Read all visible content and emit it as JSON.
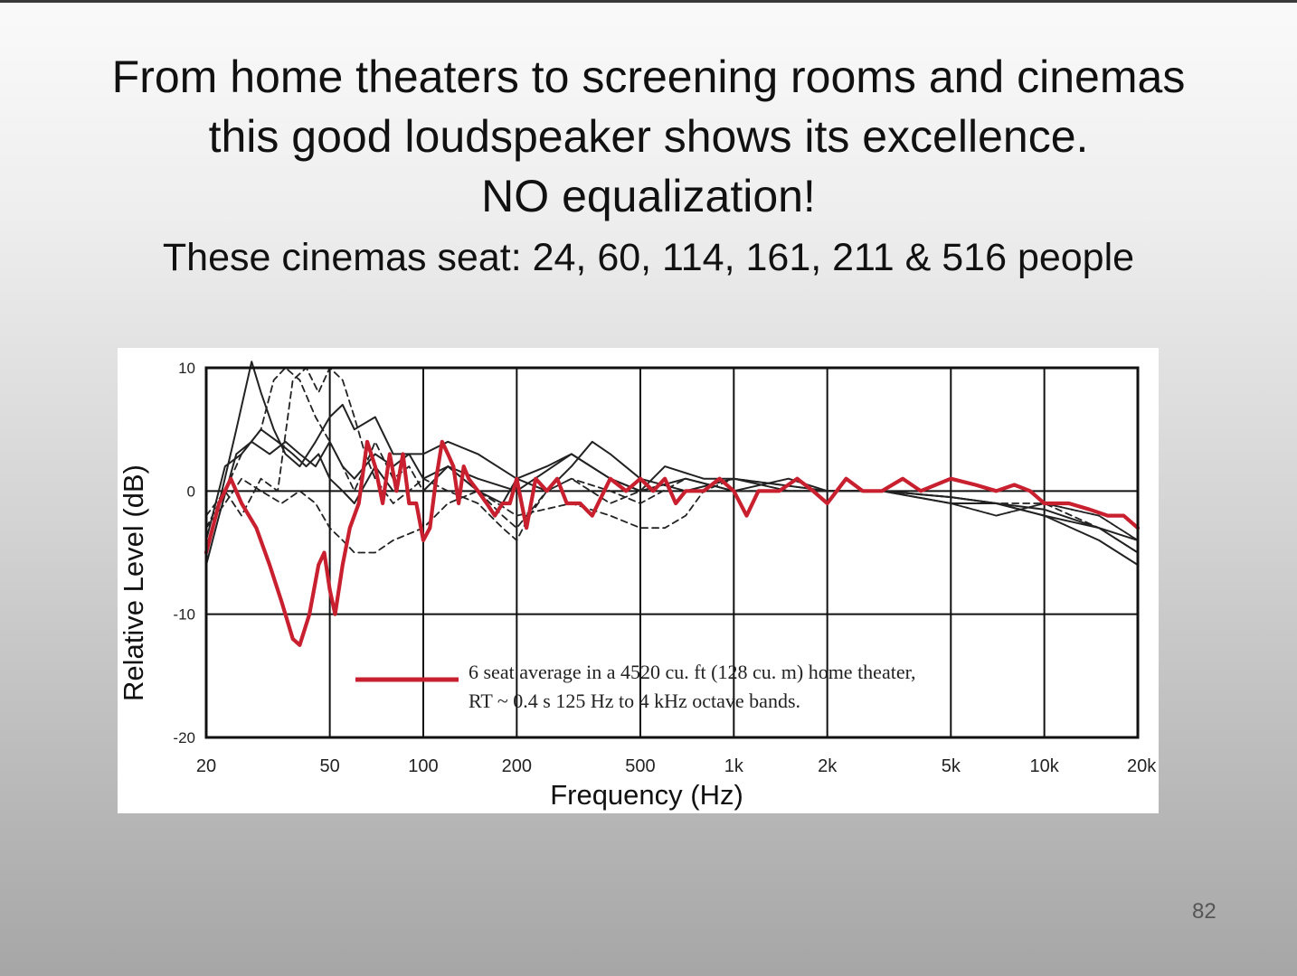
{
  "slide": {
    "title_line1": "From home theaters to screening rooms and cinemas",
    "title_line2": "this good loudspeaker shows its excellence.",
    "title_line3": "NO equalization!",
    "subtitle": "These cinemas seat: 24, 60, 114, 161, 211 & 516 people",
    "page_number": "82"
  },
  "colors": {
    "highlight": "#c8202f",
    "curves": "#222222",
    "grid": "#111111"
  },
  "chart_data": {
    "type": "line",
    "xlabel": "Frequency (Hz)",
    "ylabel": "Relative Level (dB)",
    "xscale": "log",
    "xlim": [
      20,
      20000
    ],
    "ylim": [
      -20,
      10
    ],
    "grid": true,
    "xticks": [
      {
        "v": 20,
        "label": "20"
      },
      {
        "v": 50,
        "label": "50"
      },
      {
        "v": 100,
        "label": "100"
      },
      {
        "v": 200,
        "label": "200"
      },
      {
        "v": 500,
        "label": "500"
      },
      {
        "v": 1000,
        "label": "1k"
      },
      {
        "v": 2000,
        "label": "2k"
      },
      {
        "v": 5000,
        "label": "5k"
      },
      {
        "v": 10000,
        "label": "10k"
      },
      {
        "v": 20000,
        "label": "20k"
      }
    ],
    "yticks": [
      {
        "v": 10,
        "label": "10"
      },
      {
        "v": 0,
        "label": "0"
      },
      {
        "v": -10,
        "label": "-10"
      },
      {
        "v": -20,
        "label": "-20"
      }
    ],
    "legend": {
      "line1": "6 seat average in a 4520 cu. ft (128 cu. m) home theater,",
      "line2": "RT ~ 0.4 s 125 Hz to 4 kHz octave bands."
    },
    "series": [
      {
        "style": "red",
        "x": [
          20,
          22,
          24,
          26,
          29,
          32,
          35,
          38,
          40,
          43,
          46,
          48,
          50,
          52,
          55,
          58,
          62,
          66,
          70,
          74,
          78,
          82,
          86,
          90,
          95,
          100,
          105,
          110,
          115,
          120,
          125,
          130,
          135,
          140,
          150,
          160,
          170,
          180,
          190,
          200,
          215,
          230,
          250,
          270,
          290,
          320,
          350,
          400,
          450,
          500,
          550,
          600,
          650,
          700,
          800,
          900,
          1000,
          1100,
          1200,
          1400,
          1600,
          1800,
          2000,
          2300,
          2600,
          3000,
          3500,
          4000,
          5000,
          6000,
          7000,
          8000,
          9000,
          10000,
          12000,
          14000,
          16000,
          18000,
          20000
        ],
        "y": [
          -5,
          -1,
          1,
          -1,
          -3,
          -6,
          -9,
          -12,
          -12.5,
          -10,
          -6,
          -5,
          -8,
          -10,
          -6,
          -3,
          -1,
          4,
          2,
          -1,
          3,
          0,
          3,
          -1,
          -1,
          -4,
          -3,
          1,
          4,
          3,
          2,
          -1,
          2,
          1,
          0,
          -1,
          -2,
          -1,
          -1,
          1,
          -3,
          1,
          0,
          1,
          -1,
          -1,
          -2,
          1,
          0,
          1,
          0,
          1,
          -1,
          0,
          0,
          1,
          0,
          -2,
          0,
          0,
          1,
          0,
          -1,
          1,
          0,
          0,
          1,
          0,
          1,
          0.5,
          0,
          0.5,
          0,
          -1,
          -1,
          -1.5,
          -2,
          -2,
          -3
        ]
      },
      {
        "style": "solid",
        "x": [
          20,
          22,
          25,
          28,
          30,
          33,
          36,
          40,
          45,
          50,
          55,
          60,
          70,
          80,
          100,
          120,
          150,
          200,
          250,
          300,
          400,
          500,
          600,
          800,
          1000,
          1500,
          2000,
          3000,
          5000,
          7000,
          10000,
          15000,
          20000
        ],
        "y": [
          -5,
          -1,
          5,
          10.5,
          8,
          5,
          3,
          2,
          4,
          6,
          7,
          5,
          6,
          3,
          3,
          4,
          3,
          1,
          2,
          3,
          1,
          0,
          2,
          1,
          1,
          0,
          0,
          0,
          -1,
          -1,
          -2,
          -3,
          -5
        ]
      },
      {
        "style": "solid",
        "x": [
          20,
          22,
          25,
          28,
          32,
          36,
          40,
          45,
          50,
          55,
          60,
          70,
          80,
          90,
          100,
          120,
          150,
          200,
          300,
          400,
          500,
          700,
          1000,
          1500,
          2000,
          3000,
          5000,
          7000,
          10000,
          15000,
          20000
        ],
        "y": [
          -6,
          -2,
          3,
          4,
          3,
          4,
          3,
          2,
          4,
          2,
          1,
          3,
          2,
          3,
          1,
          2,
          1,
          0,
          3,
          1,
          0,
          1,
          0,
          1,
          0,
          0,
          -0.5,
          -1,
          -2,
          -4,
          -6
        ]
      },
      {
        "style": "solid",
        "x": [
          20,
          23,
          26,
          30,
          34,
          38,
          42,
          46,
          50,
          55,
          60,
          70,
          80,
          100,
          120,
          150,
          180,
          200,
          250,
          300,
          350,
          400,
          500,
          700,
          1000,
          2000,
          3000,
          5000,
          7000,
          10000,
          15000,
          20000
        ],
        "y": [
          -4,
          2,
          3,
          5,
          4,
          3,
          2,
          3,
          1,
          0,
          -1,
          2,
          0,
          0,
          2,
          0,
          -1,
          1,
          0,
          2,
          4,
          3,
          1,
          0,
          1,
          0,
          0,
          -0.5,
          -1,
          -1.5,
          -3,
          -4
        ]
      },
      {
        "style": "dash",
        "x": [
          20,
          23,
          26,
          30,
          33,
          36,
          40,
          45,
          50,
          55,
          60,
          65,
          70,
          80,
          90,
          100,
          120,
          150,
          180,
          200,
          250,
          300,
          400,
          500,
          700,
          1000,
          2000,
          3000,
          5000,
          7000,
          10000,
          15000,
          20000
        ],
        "y": [
          -3,
          0,
          3,
          5,
          9,
          10,
          9,
          6,
          4,
          2,
          0,
          2,
          4,
          1,
          2,
          0,
          2,
          0,
          -2,
          -3,
          0,
          1,
          -1,
          0,
          1,
          0,
          0,
          0,
          -1,
          -2,
          -1,
          -3,
          -5
        ]
      },
      {
        "style": "dash",
        "x": [
          20,
          23,
          26,
          30,
          34,
          38,
          42,
          46,
          50,
          55,
          60,
          65,
          70,
          80,
          90,
          100,
          120,
          150,
          180,
          200,
          220,
          250,
          300,
          400,
          500,
          700,
          1000,
          2000,
          3000,
          5000,
          7000,
          10000,
          15000,
          20000
        ],
        "y": [
          -2,
          0,
          -2,
          1,
          0,
          9,
          10,
          8,
          10,
          9,
          6,
          3,
          1,
          -1,
          0,
          1,
          0,
          -1,
          -3,
          -4,
          -2,
          0,
          1,
          0,
          -1,
          1,
          0,
          0,
          0,
          -1,
          -2,
          -1,
          -2,
          -4
        ]
      },
      {
        "style": "dash",
        "x": [
          20,
          23,
          26,
          30,
          35,
          40,
          45,
          50,
          55,
          60,
          70,
          80,
          100,
          120,
          150,
          200,
          300,
          400,
          500,
          600,
          700,
          800,
          1000,
          2000,
          3000,
          5000,
          7000,
          10000,
          15000,
          20000
        ],
        "y": [
          -3,
          -1,
          1,
          0,
          -1,
          0,
          -1,
          -3,
          -4,
          -5,
          -5,
          -4,
          -3,
          -1,
          0,
          -2,
          -1,
          -2,
          -3,
          -3,
          -2,
          0,
          1,
          0,
          0,
          -0.5,
          -1,
          -1,
          -2,
          -4
        ]
      }
    ]
  }
}
